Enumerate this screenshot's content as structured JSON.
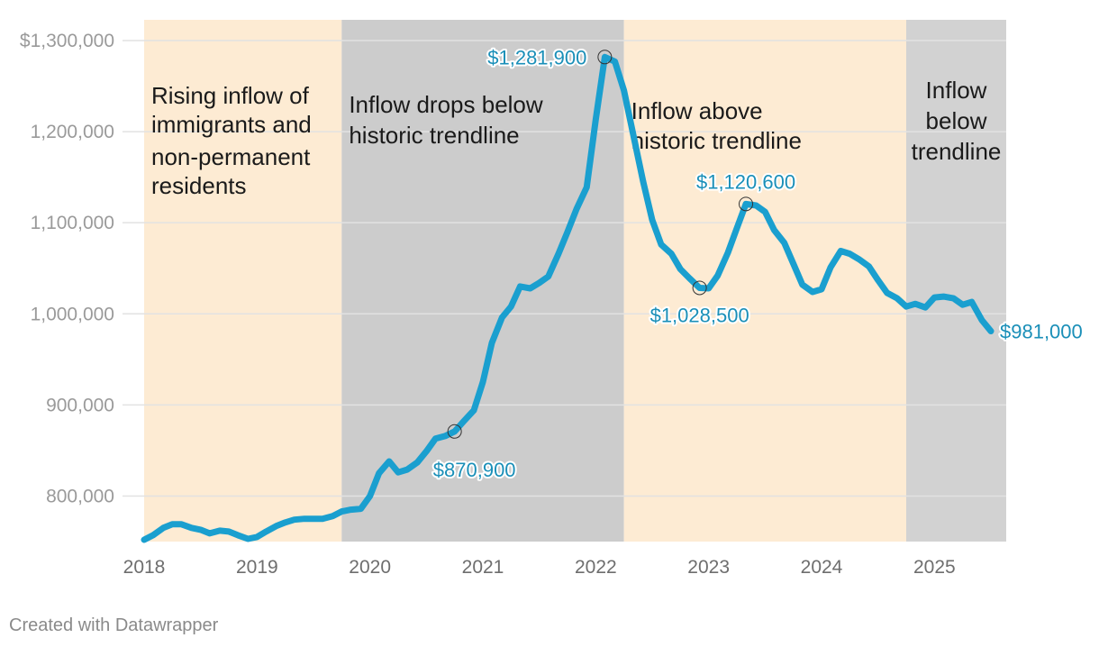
{
  "chart_data": {
    "type": "line",
    "ylim": [
      750000,
      1320000
    ],
    "xlim": [
      2018.0,
      2025.75
    ],
    "y_ticks": [
      {
        "value": 1300000,
        "label": "$1,300,000"
      },
      {
        "value": 1200000,
        "label": "1,200,000"
      },
      {
        "value": 1100000,
        "label": "1,100,000"
      },
      {
        "value": 1000000,
        "label": "1,000,000"
      },
      {
        "value": 900000,
        "label": "900,000"
      },
      {
        "value": 800000,
        "label": "800,000"
      }
    ],
    "x_ticks": [
      {
        "value": 2018,
        "label": "2018"
      },
      {
        "value": 2019,
        "label": "2019"
      },
      {
        "value": 2020,
        "label": "2020"
      },
      {
        "value": 2021,
        "label": "2021"
      },
      {
        "value": 2022,
        "label": "2022"
      },
      {
        "value": 2023,
        "label": "2023"
      },
      {
        "value": 2024,
        "label": "2024"
      },
      {
        "value": 2025,
        "label": "2025"
      }
    ],
    "bands": [
      {
        "x0": 2018.0,
        "x1": 2019.75,
        "color": "#fdebd3",
        "lines": [
          "Rising inflow of",
          "immigrants and",
          "non-permanent",
          "residents"
        ],
        "align": "start"
      },
      {
        "x0": 2019.75,
        "x1": 2022.25,
        "color": "#cccccc",
        "lines": [
          "Inflow drops below",
          "historic trendline"
        ],
        "align": "start"
      },
      {
        "x0": 2022.25,
        "x1": 2024.75,
        "color": "#fdebd3",
        "lines": [
          "Inflow above",
          "historic trendline"
        ],
        "align": "start"
      },
      {
        "x0": 2024.75,
        "x1": 2025.65,
        "color": "#d2d2d2",
        "lines": [
          "Inflow",
          "below",
          "trendline"
        ],
        "align": "middle"
      }
    ],
    "series": [
      {
        "color": "#1a9fcf",
        "points": [
          [
            2018.0,
            752000
          ],
          [
            2018.08,
            757000
          ],
          [
            2018.17,
            765000
          ],
          [
            2018.25,
            769000
          ],
          [
            2018.33,
            769000
          ],
          [
            2018.42,
            765000
          ],
          [
            2018.5,
            763000
          ],
          [
            2018.58,
            759000
          ],
          [
            2018.67,
            762000
          ],
          [
            2018.75,
            761000
          ],
          [
            2018.83,
            757000
          ],
          [
            2018.92,
            753000
          ],
          [
            2019.0,
            755000
          ],
          [
            2019.08,
            761000
          ],
          [
            2019.17,
            767000
          ],
          [
            2019.25,
            771000
          ],
          [
            2019.33,
            774000
          ],
          [
            2019.42,
            775000
          ],
          [
            2019.5,
            775000
          ],
          [
            2019.58,
            775000
          ],
          [
            2019.67,
            778000
          ],
          [
            2019.75,
            783000
          ],
          [
            2019.83,
            785000
          ],
          [
            2019.92,
            786000
          ],
          [
            2020.0,
            800000
          ],
          [
            2020.08,
            825000
          ],
          [
            2020.17,
            838000
          ],
          [
            2020.25,
            826000
          ],
          [
            2020.33,
            829000
          ],
          [
            2020.42,
            837000
          ],
          [
            2020.5,
            849000
          ],
          [
            2020.58,
            863000
          ],
          [
            2020.67,
            866000
          ],
          [
            2020.75,
            870900
          ],
          [
            2020.83,
            882000
          ],
          [
            2020.92,
            894000
          ],
          [
            2021.0,
            925000
          ],
          [
            2021.08,
            968000
          ],
          [
            2021.17,
            996000
          ],
          [
            2021.25,
            1008000
          ],
          [
            2021.33,
            1030000
          ],
          [
            2021.42,
            1028000
          ],
          [
            2021.5,
            1034000
          ],
          [
            2021.58,
            1041000
          ],
          [
            2021.67,
            1066000
          ],
          [
            2021.75,
            1090000
          ],
          [
            2021.83,
            1115000
          ],
          [
            2021.92,
            1139000
          ],
          [
            2022.0,
            1213000
          ],
          [
            2022.08,
            1281900
          ],
          [
            2022.17,
            1277000
          ],
          [
            2022.25,
            1245000
          ],
          [
            2022.33,
            1198000
          ],
          [
            2022.42,
            1145000
          ],
          [
            2022.5,
            1103000
          ],
          [
            2022.58,
            1076000
          ],
          [
            2022.67,
            1066000
          ],
          [
            2022.75,
            1049000
          ],
          [
            2022.83,
            1039000
          ],
          [
            2022.92,
            1028500
          ],
          [
            2023.0,
            1028000
          ],
          [
            2023.08,
            1042000
          ],
          [
            2023.17,
            1067000
          ],
          [
            2023.25,
            1094000
          ],
          [
            2023.33,
            1120600
          ],
          [
            2023.42,
            1119000
          ],
          [
            2023.5,
            1112000
          ],
          [
            2023.58,
            1092000
          ],
          [
            2023.67,
            1078000
          ],
          [
            2023.75,
            1055000
          ],
          [
            2023.83,
            1032000
          ],
          [
            2023.92,
            1024000
          ],
          [
            2024.0,
            1027000
          ],
          [
            2024.08,
            1051000
          ],
          [
            2024.17,
            1069000
          ],
          [
            2024.25,
            1066000
          ],
          [
            2024.33,
            1060000
          ],
          [
            2024.42,
            1052000
          ],
          [
            2024.5,
            1037000
          ],
          [
            2024.58,
            1023000
          ],
          [
            2024.67,
            1017000
          ],
          [
            2024.75,
            1008000
          ],
          [
            2024.83,
            1011000
          ],
          [
            2024.92,
            1007000
          ],
          [
            2025.0,
            1018000
          ],
          [
            2025.08,
            1019000
          ],
          [
            2025.17,
            1017000
          ],
          [
            2025.25,
            1010000
          ],
          [
            2025.33,
            1013000
          ],
          [
            2025.42,
            993000
          ],
          [
            2025.5,
            981000
          ]
        ]
      }
    ],
    "annotations": [
      {
        "x": 2022.08,
        "y": 1281900,
        "label": "$1,281,900",
        "marker": true,
        "anchor": "end",
        "dx": -20,
        "dy": 8
      },
      {
        "x": 2023.33,
        "y": 1120600,
        "label": "$1,120,600",
        "marker": true,
        "anchor": "middle",
        "dx": 0,
        "dy": -17
      },
      {
        "x": 2022.92,
        "y": 1028500,
        "label": "$1,028,500",
        "marker": true,
        "anchor": "middle",
        "dx": 0,
        "dy": 38
      },
      {
        "x": 2020.75,
        "y": 870900,
        "label": "$870,900",
        "marker": true,
        "anchor": "middle",
        "dx": 22,
        "dy": 50
      },
      {
        "x": 2025.5,
        "y": 981000,
        "label": "$981,000",
        "marker": false,
        "anchor": "start",
        "dx": 10,
        "dy": 8
      }
    ]
  },
  "footer": {
    "credit": "Created with Datawrapper"
  }
}
